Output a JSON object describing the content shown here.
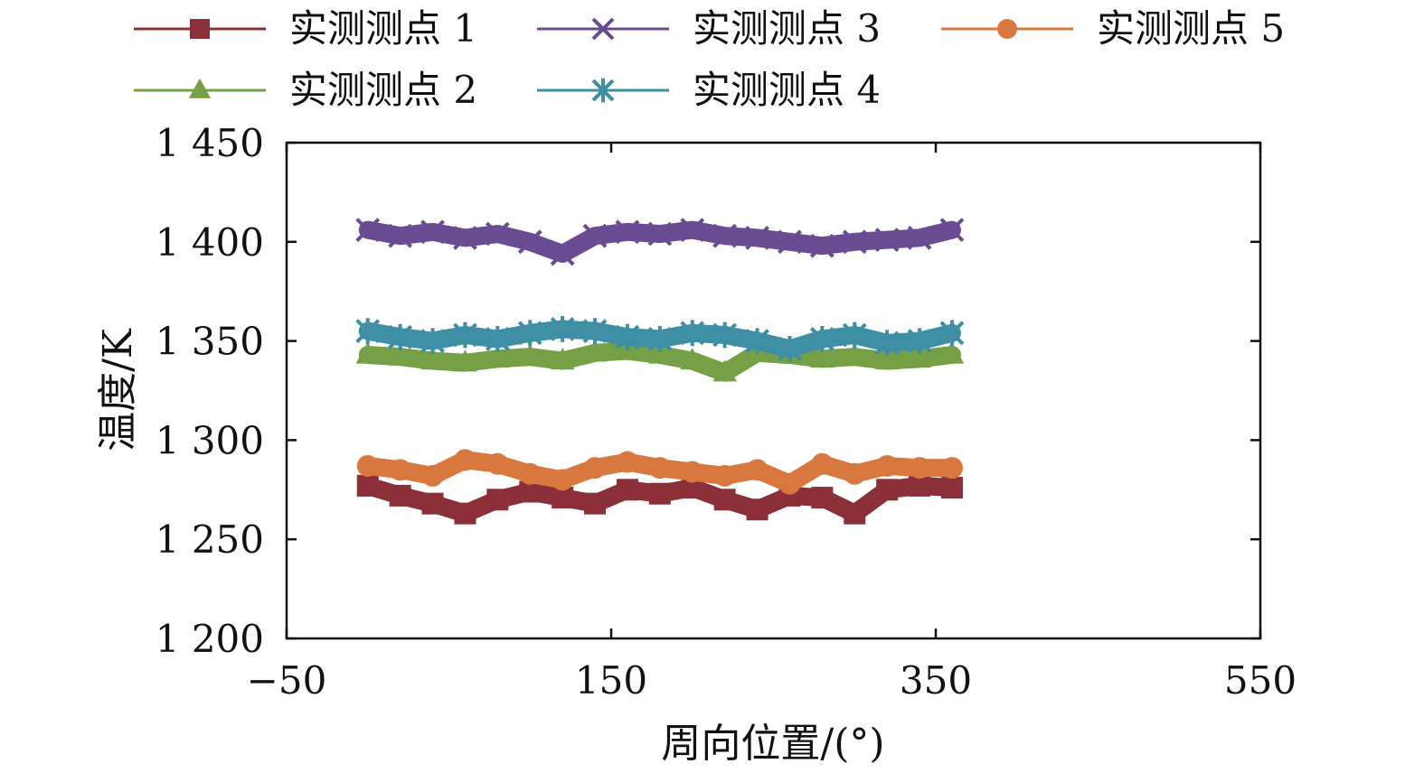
{
  "chart_data": {
    "type": "line",
    "xlabel": "周向位置/(°)",
    "ylabel": "温度/K",
    "xlim": [
      -50,
      550
    ],
    "ylim": [
      1200,
      1450
    ],
    "x_ticks": [
      -50,
      150,
      350,
      550
    ],
    "y_ticks": [
      1200,
      1250,
      1300,
      1350,
      1400,
      1450
    ],
    "x_tick_labels": [
      "−50",
      "150",
      "350",
      "550"
    ],
    "y_tick_labels": [
      "1 200",
      "1 250",
      "1 300",
      "1 350",
      "1 400",
      "1 450"
    ],
    "legend_position": "top",
    "x": [
      0,
      20,
      40,
      60,
      80,
      100,
      120,
      140,
      160,
      180,
      200,
      220,
      240,
      260,
      280,
      300,
      320,
      340,
      360
    ],
    "series": [
      {
        "name": "实测测点 1",
        "marker": "square",
        "color": "#8b3038",
        "values": [
          1277,
          1272,
          1268,
          1263,
          1270,
          1274,
          1271,
          1268,
          1275,
          1273,
          1276,
          1270,
          1265,
          1272,
          1271,
          1263,
          1275,
          1277,
          1276
        ]
      },
      {
        "name": "实测测点 2",
        "marker": "triangle",
        "color": "#76a045",
        "values": [
          1343,
          1342,
          1340,
          1339,
          1341,
          1342,
          1340,
          1344,
          1345,
          1343,
          1340,
          1334,
          1344,
          1343,
          1341,
          1342,
          1340,
          1341,
          1343
        ]
      },
      {
        "name": "实测测点 3",
        "marker": "x",
        "color": "#6a4c93",
        "values": [
          1406,
          1403,
          1405,
          1402,
          1404,
          1400,
          1394,
          1403,
          1405,
          1404,
          1406,
          1403,
          1402,
          1400,
          1398,
          1400,
          1401,
          1402,
          1406
        ]
      },
      {
        "name": "实测测点 4",
        "marker": "star",
        "color": "#3e8ea4",
        "values": [
          1355,
          1352,
          1350,
          1353,
          1351,
          1354,
          1356,
          1355,
          1352,
          1351,
          1354,
          1353,
          1350,
          1346,
          1351,
          1353,
          1349,
          1350,
          1354
        ]
      },
      {
        "name": "实测测点 5",
        "marker": "circle",
        "color": "#d9783e",
        "values": [
          1287,
          1285,
          1282,
          1290,
          1288,
          1283,
          1280,
          1286,
          1289,
          1286,
          1284,
          1282,
          1285,
          1278,
          1288,
          1283,
          1287,
          1286,
          1286
        ]
      }
    ]
  }
}
